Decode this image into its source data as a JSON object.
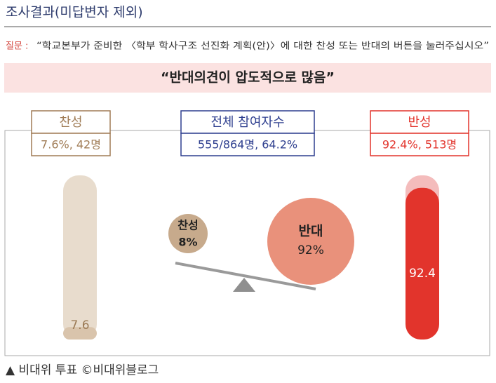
{
  "header": {
    "title": "조사결과(미답변자 제외)"
  },
  "question": {
    "label": "질문 :",
    "text": "“학교본부가 준비한 〈학부 학사구조 선진화 계획(안)〉에 대한 찬성 또는 반대의 버튼을 눌러주십시오”"
  },
  "banner": "“반대의견이 압도적으로 많음”",
  "panels": [
    {
      "title": "찬성",
      "value": "7.6%, 42명"
    },
    {
      "title": "전체 참여자수",
      "value": "555/864명, 64.2%"
    },
    {
      "title": "반성",
      "value": "92.4%, 513명"
    }
  ],
  "gauges": {
    "range": [
      0,
      100
    ],
    "items": [
      {
        "value": 7.6,
        "color": "#d9c4ac",
        "track": "#e8dccd",
        "text_color": "#9b7a55"
      },
      {
        "value": 92.4,
        "color": "#e2342c",
        "track": "#f4bcbc",
        "text_color": "#ffffff"
      }
    ]
  },
  "balance": {
    "left": {
      "label": "찬성",
      "value": "8%"
    },
    "right": {
      "label": "반대",
      "value": "92%"
    }
  },
  "footer": "▲ 비대위 투표 ©비대위블로그"
}
